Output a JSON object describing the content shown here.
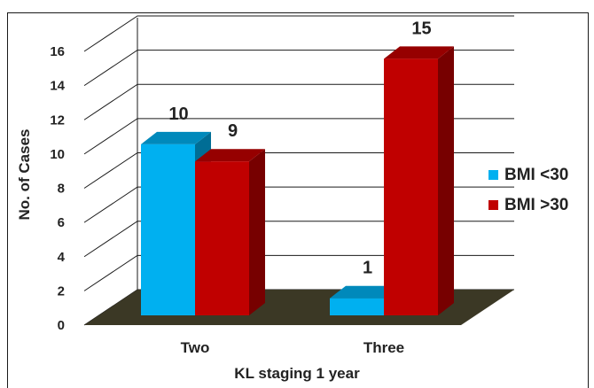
{
  "chart_data": {
    "type": "bar",
    "categories": [
      "Two",
      "Three"
    ],
    "series": [
      {
        "name": "BMI <30",
        "values": [
          10,
          1
        ],
        "color": "#00b0f0"
      },
      {
        "name": "BMI >30",
        "values": [
          9,
          15
        ],
        "color": "#c00000"
      }
    ],
    "data_labels": [
      "10",
      "9",
      "1",
      "15"
    ],
    "xlabel": "KL staging 1 year",
    "ylabel": "No. of Cases",
    "ylim": [
      0,
      16
    ],
    "yticks": [
      "0",
      "2",
      "4",
      "6",
      "8",
      "10",
      "12",
      "14",
      "16"
    ],
    "grid": true,
    "legend_position": "right",
    "floor_color": "#3b3825",
    "style": "3d-clustered-column"
  }
}
